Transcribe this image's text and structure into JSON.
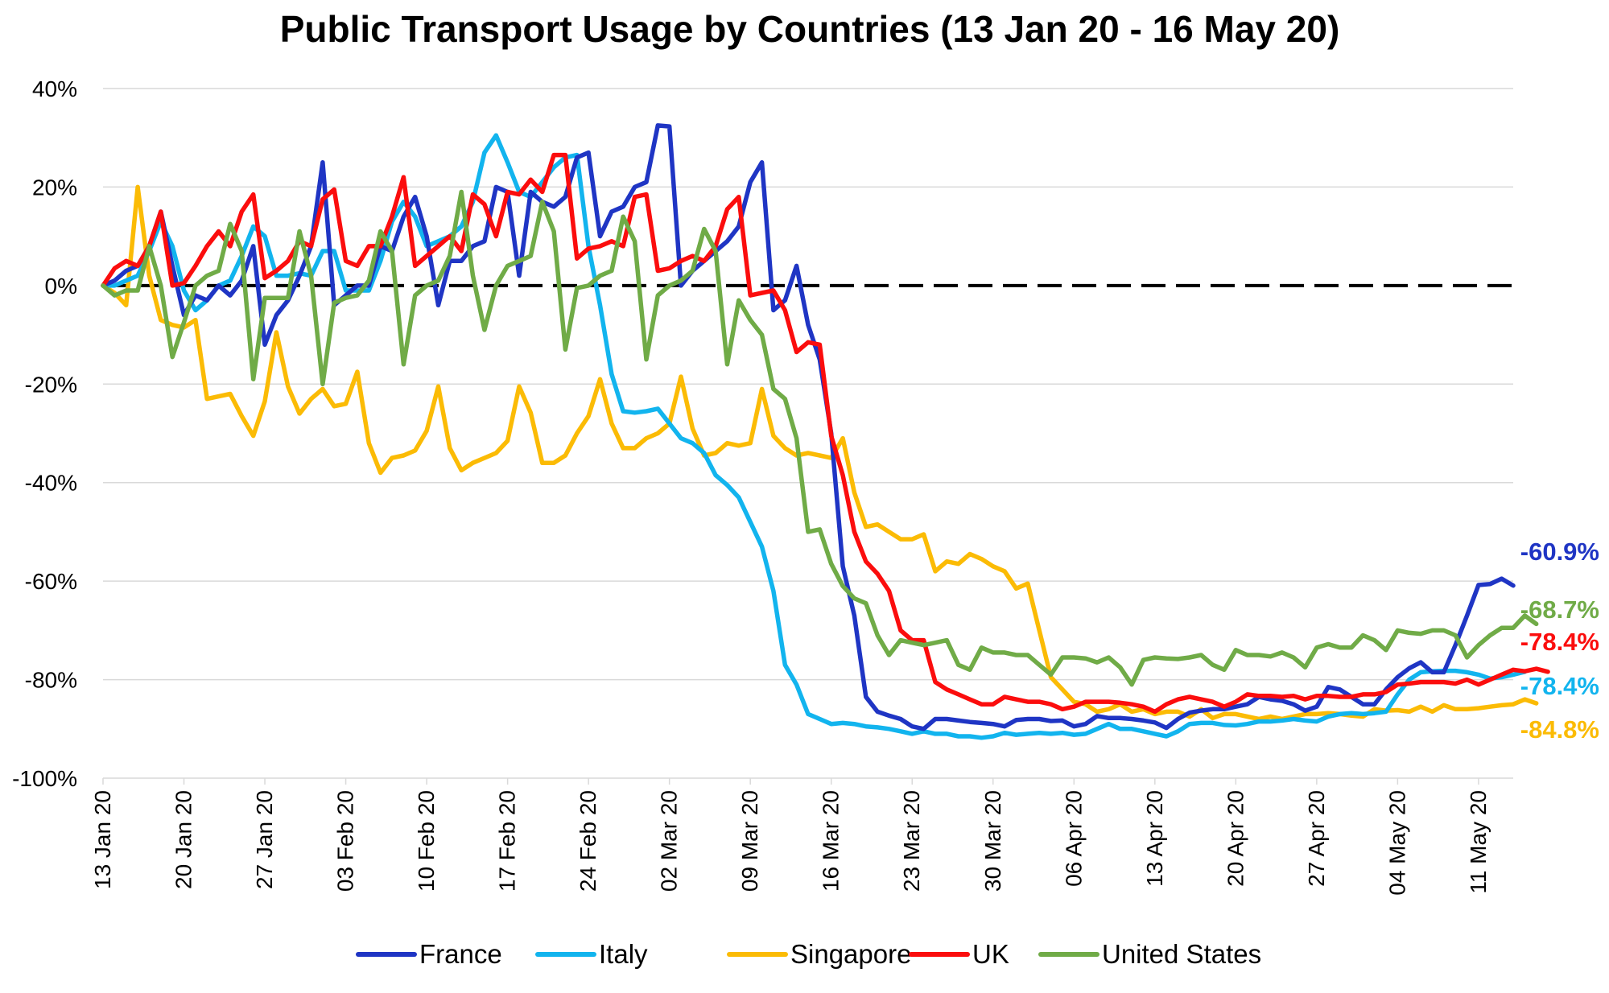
{
  "chart_data": {
    "type": "line",
    "title": "Public Transport Usage by Countries (13 Jan 20 - 16 May 20)",
    "xlabel": "",
    "ylabel": "",
    "y_unit": "%",
    "ylim": [
      -100,
      40
    ],
    "yticks": [
      40,
      20,
      0,
      -20,
      -40,
      -60,
      -80,
      -100
    ],
    "ytick_labels": [
      "40%",
      "20%",
      "0%",
      "-20%",
      "-40%",
      "-60%",
      "-80%",
      "-100%"
    ],
    "x_start": "13 Jan 20",
    "x_end": "16 May 20",
    "x_tick_labels": [
      "13 Jan 20",
      "20 Jan 20",
      "27 Jan 20",
      "03 Feb 20",
      "10 Feb 20",
      "17 Feb 20",
      "24 Feb 20",
      "02 Mar 20",
      "09 Mar 20",
      "16 Mar 20",
      "23 Mar 20",
      "30 Mar 20",
      "06 Apr 20",
      "13 Apr 20",
      "20 Apr 20",
      "27 Apr 20",
      "04 May 20",
      "11 May 20"
    ],
    "grid": true,
    "reference_line": {
      "y": 0,
      "style": "dashed",
      "color": "#000000"
    },
    "legend_position": "bottom",
    "series": [
      {
        "name": "France",
        "color": "#1f35c4",
        "end_label": "-60.9%",
        "values": [
          0,
          1,
          3,
          4,
          8,
          15,
          4,
          -6,
          -2,
          -3,
          0,
          -2,
          1,
          8,
          -12,
          -6,
          -3,
          2,
          8,
          25,
          -4,
          -2,
          0,
          0,
          8,
          7,
          14,
          18,
          10,
          -4,
          5,
          5,
          8,
          9,
          20,
          19,
          2,
          19,
          17,
          16,
          18,
          26,
          27,
          10,
          15,
          16,
          20,
          21,
          32.5,
          32.3,
          0,
          3,
          5,
          7,
          9,
          12,
          21,
          25,
          -5,
          -3,
          4,
          -8,
          -15,
          -30,
          -57,
          -67,
          -83.5,
          -86.5,
          -87.3,
          -88,
          -89.5,
          -90,
          -88,
          -88,
          -88.3,
          -88.6,
          -88.8,
          -89,
          -89.5,
          -88.2,
          -88,
          -88,
          -88.4,
          -88.3,
          -89.5,
          -89,
          -87.4,
          -87.8,
          -87.8,
          -88,
          -88.3,
          -88.7,
          -89.8,
          -88,
          -86.7,
          -86.3,
          -86,
          -86,
          -85.5,
          -85,
          -83.5,
          -84,
          -84.3,
          -85,
          -86.3,
          -85.5,
          -81.5,
          -82,
          -83.5,
          -85,
          -85,
          -82,
          -79.5,
          -77.7,
          -76.5,
          -78.5,
          -78.5,
          -73,
          -67,
          -60.8,
          -60.6,
          -59.5,
          -60.9
        ]
      },
      {
        "name": "Italy",
        "color": "#12b4ee",
        "end_label": "-78.4%",
        "values": [
          0,
          0,
          1,
          2,
          7,
          13,
          8,
          -1,
          -5,
          -3,
          0,
          1,
          6,
          12,
          10,
          2,
          2,
          2.5,
          2,
          7,
          7,
          -1,
          -1,
          -1,
          5,
          13,
          17,
          14,
          8,
          9,
          10,
          12,
          17,
          27,
          30.5,
          25,
          19,
          18,
          21,
          24,
          26,
          26.5,
          8,
          -4,
          -18,
          -25.5,
          -25.8,
          -25.5,
          -25,
          -28,
          -31,
          -32,
          -34,
          -38.5,
          -40.5,
          -43,
          -48,
          -53,
          -62,
          -77,
          -81,
          -87,
          -88,
          -89,
          -88.8,
          -89,
          -89.5,
          -89.7,
          -90,
          -90.5,
          -91,
          -90.5,
          -91,
          -91,
          -91.5,
          -91.5,
          -91.8,
          -91.5,
          -90.8,
          -91.2,
          -91,
          -90.8,
          -91,
          -90.8,
          -91.2,
          -91,
          -90,
          -89,
          -90,
          -90,
          -90.5,
          -91,
          -91.5,
          -90.5,
          -89,
          -88.8,
          -88.8,
          -89.2,
          -89.3,
          -89,
          -88.5,
          -88.5,
          -88.3,
          -88,
          -88.3,
          -88.5,
          -87.5,
          -87,
          -86.8,
          -87,
          -86.8,
          -86.5,
          -83,
          -80,
          -78.5,
          -78.3,
          -78.2,
          -78.2,
          -78.5,
          -79,
          -79.8,
          -79.5,
          -79,
          -78.4
        ]
      },
      {
        "name": "Singapore",
        "color": "#fbbb05",
        "end_label": "-84.8%",
        "values": [
          0,
          -1.5,
          -4,
          20,
          2,
          -7,
          -8,
          -8.5,
          -7,
          -23,
          -22.5,
          -22,
          -26.5,
          -30.5,
          -23.5,
          -9.5,
          -20.5,
          -26,
          -23,
          -21,
          -24.5,
          -24,
          -17.5,
          -32,
          -38,
          -35,
          -34.5,
          -33.5,
          -29.5,
          -20.5,
          -33,
          -37.5,
          -36,
          -35,
          -34,
          -31.5,
          -20.5,
          -25.8,
          -36,
          -36,
          -34.5,
          -30,
          -26.5,
          -19,
          -28,
          -33,
          -33,
          -31,
          -30,
          -28,
          -18.5,
          -29,
          -34.5,
          -34,
          -32,
          -32.5,
          -32,
          -21,
          -30.5,
          -33,
          -34.5,
          -34,
          -34.5,
          -35,
          -31,
          -42,
          -49,
          -48.5,
          -50,
          -51.5,
          -51.5,
          -50.5,
          -58,
          -56,
          -56.5,
          -54.5,
          -55.5,
          -57,
          -58,
          -61.5,
          -60.5,
          -70,
          -79.5,
          -82,
          -84.5,
          -85,
          -86.5,
          -86,
          -85,
          -86.5,
          -86,
          -87,
          -86.5,
          -86.5,
          -87.5,
          -86,
          -87.8,
          -87,
          -87,
          -87.5,
          -88,
          -87.5,
          -88,
          -87.5,
          -87,
          -87,
          -86.8,
          -87,
          -87.3,
          -87.5,
          -86,
          -86.3,
          -86.2,
          -86.5,
          -85.5,
          -86.5,
          -85.2,
          -86,
          -86,
          -85.8,
          -85.5,
          -85.2,
          -85,
          -84,
          -84.8
        ]
      },
      {
        "name": "UK",
        "color": "#fb0d0d",
        "end_label": "-78.4%",
        "values": [
          0,
          3.5,
          5,
          4,
          8,
          15,
          0,
          0.5,
          4,
          8,
          11,
          8,
          15,
          18.5,
          1.5,
          3,
          5,
          9,
          8,
          17.5,
          19.5,
          5,
          4,
          8,
          8,
          14,
          22,
          4,
          6,
          8,
          10,
          7,
          18.5,
          16.5,
          10,
          19,
          18.5,
          21.5,
          19,
          26.5,
          26.5,
          5.5,
          7.5,
          8,
          9,
          8,
          18,
          18.5,
          3,
          3.5,
          5,
          6,
          5,
          8,
          15.5,
          18,
          -2,
          -1.5,
          -1,
          -5,
          -13.5,
          -11.5,
          -12,
          -30.5,
          -38.5,
          -50,
          -56,
          -58.5,
          -62,
          -70,
          -72,
          -72,
          -80.5,
          -82,
          -83,
          -84,
          -85,
          -85,
          -83.5,
          -84,
          -84.5,
          -84.5,
          -85,
          -86,
          -85.5,
          -84.5,
          -84.5,
          -84.5,
          -84.7,
          -85,
          -85.5,
          -86.5,
          -85,
          -84,
          -83.5,
          -84,
          -84.5,
          -85.5,
          -84.5,
          -83,
          -83.3,
          -83.3,
          -83.5,
          -83.3,
          -84,
          -83.3,
          -83.3,
          -83.5,
          -83.5,
          -83,
          -83,
          -82.5,
          -81,
          -80.8,
          -80.5,
          -80.5,
          -80.5,
          -80.8,
          -80,
          -81,
          -80,
          -79,
          -78,
          -78.3,
          -77.8,
          -78.4
        ]
      },
      {
        "name": "United States",
        "color": "#70ab47",
        "end_label": "-68.7%",
        "values": [
          0,
          -2,
          -1,
          -1,
          8,
          0,
          -14.5,
          -7.5,
          0,
          2,
          3,
          12.5,
          7,
          -19,
          -2.5,
          -2.5,
          -2.5,
          11,
          2,
          -20,
          -3.5,
          -2.5,
          -2,
          1,
          11,
          7,
          -16,
          -2,
          0,
          1,
          6,
          19,
          2,
          -9,
          0,
          4,
          5,
          6,
          17,
          11,
          -13,
          -0.5,
          0,
          2,
          3,
          14,
          9,
          -15,
          -2,
          0,
          1,
          3,
          11.5,
          7,
          -16,
          -3,
          -7,
          -10,
          -21,
          -23,
          -31,
          -50,
          -49.5,
          -56.5,
          -61,
          -63.5,
          -64.5,
          -71,
          -75,
          -72,
          -72.5,
          -73,
          -72.5,
          -72,
          -77,
          -78,
          -73.5,
          -74.5,
          -74.5,
          -75,
          -75,
          -77,
          -79,
          -75.5,
          -75.5,
          -75.7,
          -76.5,
          -75.5,
          -77.5,
          -81,
          -76,
          -75.5,
          -75.7,
          -75.8,
          -75.5,
          -75,
          -77,
          -78,
          -74,
          -75,
          -75,
          -75.3,
          -74.5,
          -75.5,
          -77.5,
          -73.5,
          -72.8,
          -73.5,
          -73.5,
          -71,
          -72,
          -74,
          -70,
          -70.5,
          -70.7,
          -70,
          -70,
          -71,
          -75.5,
          -73,
          -71,
          -69.5,
          -69.5,
          -67,
          -68.7
        ]
      }
    ]
  }
}
